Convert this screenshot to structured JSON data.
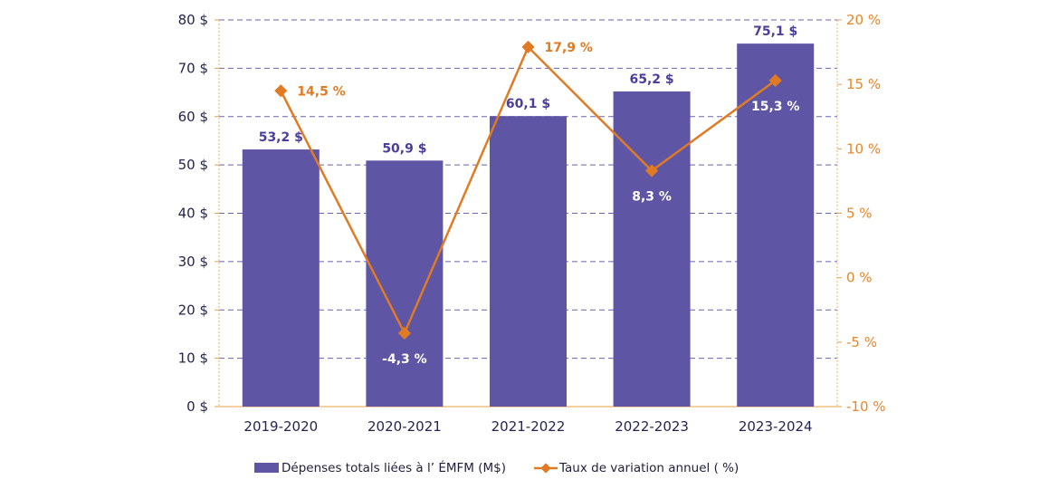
{
  "chart_data": {
    "type": "bar+line",
    "categories": [
      "2019-2020",
      "2020-2021",
      "2021-2022",
      "2022-2023",
      "2023-2024"
    ],
    "series": [
      {
        "name": "Dépenses totals liées à l’ ÉMFM (M$)",
        "type": "bar",
        "axis": "left",
        "values": [
          53.2,
          50.9,
          60.1,
          65.2,
          75.1
        ],
        "labels": [
          "53,2 $",
          "50,9 $",
          "60,1 $",
          "65,2 $",
          "75,1 $"
        ],
        "color": "#5f55a5"
      },
      {
        "name": "Taux de variation annuel ( %)",
        "type": "line",
        "axis": "right",
        "values": [
          14.5,
          -4.3,
          17.9,
          8.3,
          15.3
        ],
        "labels": [
          "14,5 %",
          "-4,3 %",
          "17,9 %",
          "8,3 %",
          "15,3 %"
        ],
        "color": "#e07b24"
      }
    ],
    "left_axis": {
      "ylim": [
        0,
        80
      ],
      "ticks": [
        0,
        10,
        20,
        30,
        40,
        50,
        60,
        70,
        80
      ],
      "tick_labels": [
        "0 $",
        "10 $",
        "20 $",
        "30 $",
        "40 $",
        "50 $",
        "60 $",
        "70 $",
        "80 $"
      ]
    },
    "right_axis": {
      "ylim": [
        -10,
        20
      ],
      "ticks": [
        -10,
        -5,
        0,
        5,
        10,
        15,
        20
      ],
      "tick_labels": [
        "-10 %",
        "-5 %",
        "0 %",
        "5 %",
        "10 %",
        "15 %",
        "20 %"
      ]
    },
    "grid": true,
    "legend_position": "bottom",
    "colors": {
      "left_tick_text": "#25254f",
      "right_tick_text": "#e8862a",
      "bar_label": "#4b3f9e",
      "grid": "#6a62b0"
    }
  }
}
